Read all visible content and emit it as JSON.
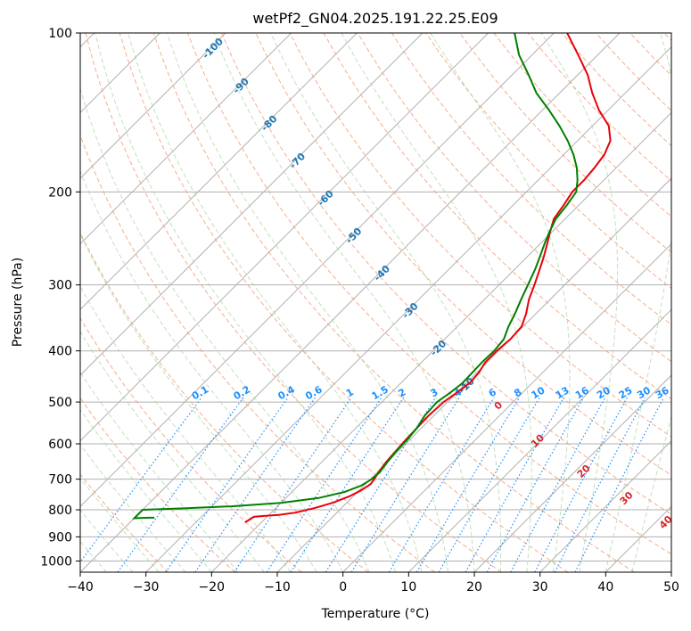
{
  "chart_data": {
    "type": "line",
    "title": "wetPf2_GN04.2025.191.22.25.E09",
    "xlabel": "Temperature (°C)",
    "ylabel": "Pressure (hPa)",
    "xlim": [
      -40,
      50
    ],
    "ylim": [
      1050,
      100
    ],
    "y_scale": "log",
    "x_ticks": [
      -40,
      -30,
      -20,
      -10,
      0,
      10,
      20,
      30,
      40,
      50
    ],
    "y_ticks": [
      1000,
      900,
      800,
      700,
      600,
      500,
      400,
      300,
      200,
      100
    ],
    "grid": true,
    "series": [
      {
        "id": "temperature",
        "color": "#e8000b",
        "points": [
          [
            -22.5,
            845
          ],
          [
            -22.0,
            825
          ],
          [
            -20.8,
            822
          ],
          [
            -18.5,
            818
          ],
          [
            -16.3,
            810
          ],
          [
            -14.0,
            793
          ],
          [
            -12.1,
            775
          ],
          [
            -10.6,
            755
          ],
          [
            -9.7,
            735
          ],
          [
            -9.2,
            715
          ],
          [
            -9.4,
            700
          ],
          [
            -9.8,
            680
          ],
          [
            -10.2,
            650
          ],
          [
            -10.4,
            620
          ],
          [
            -10.6,
            590
          ],
          [
            -10.7,
            560
          ],
          [
            -10.8,
            530
          ],
          [
            -10.6,
            500
          ],
          [
            -10.0,
            480
          ],
          [
            -9.5,
            460
          ],
          [
            -9.7,
            440
          ],
          [
            -10.3,
            420
          ],
          [
            -10.3,
            400
          ],
          [
            -10.0,
            380
          ],
          [
            -10.2,
            360
          ],
          [
            -11.5,
            340
          ],
          [
            -13.2,
            320
          ],
          [
            -14.6,
            300
          ],
          [
            -16.2,
            280
          ],
          [
            -17.5,
            265
          ],
          [
            -19.0,
            250
          ],
          [
            -20.3,
            238
          ],
          [
            -21.7,
            225
          ],
          [
            -22.3,
            212
          ],
          [
            -23.0,
            200
          ],
          [
            -23.0,
            190
          ],
          [
            -23.3,
            180
          ],
          [
            -23.8,
            170
          ],
          [
            -25.0,
            160
          ],
          [
            -27.5,
            150
          ],
          [
            -31.4,
            140
          ],
          [
            -35.0,
            130
          ],
          [
            -38.5,
            120
          ],
          [
            -43.0,
            110
          ],
          [
            -48.0,
            100
          ]
        ]
      },
      {
        "id": "dewpoint",
        "color": "#008000",
        "points": [
          [
            -37.0,
            828
          ],
          [
            -38.0,
            828
          ],
          [
            -40.0,
            830
          ],
          [
            -40.0,
            800
          ],
          [
            -34.0,
            795
          ],
          [
            -27.0,
            788
          ],
          [
            -20.0,
            776
          ],
          [
            -15.0,
            760
          ],
          [
            -12.0,
            740
          ],
          [
            -10.4,
            720
          ],
          [
            -9.8,
            700
          ],
          [
            -9.6,
            680
          ],
          [
            -10.0,
            650
          ],
          [
            -10.3,
            620
          ],
          [
            -10.4,
            590
          ],
          [
            -10.7,
            560
          ],
          [
            -11.4,
            530
          ],
          [
            -11.6,
            500
          ],
          [
            -11.0,
            480
          ],
          [
            -10.6,
            460
          ],
          [
            -10.7,
            440
          ],
          [
            -10.8,
            420
          ],
          [
            -10.7,
            400
          ],
          [
            -11.0,
            380
          ],
          [
            -12.2,
            360
          ],
          [
            -13.2,
            340
          ],
          [
            -14.4,
            320
          ],
          [
            -15.6,
            300
          ],
          [
            -16.9,
            280
          ],
          [
            -18.1,
            265
          ],
          [
            -19.4,
            250
          ],
          [
            -20.4,
            238
          ],
          [
            -21.4,
            225
          ],
          [
            -21.8,
            212
          ],
          [
            -22.4,
            200
          ],
          [
            -24.0,
            190
          ],
          [
            -26.0,
            180
          ],
          [
            -28.5,
            170
          ],
          [
            -31.5,
            160
          ],
          [
            -35.0,
            150
          ],
          [
            -39.0,
            140
          ],
          [
            -43.5,
            130
          ],
          [
            -47.5,
            120
          ],
          [
            -52.0,
            110
          ],
          [
            -56.0,
            100
          ]
        ]
      }
    ],
    "isotherm_labels": [
      "-100",
      "-90",
      "-80",
      "-70",
      "-60",
      "-50",
      "-40",
      "-30",
      "-20",
      "-10"
    ],
    "mixing_ratio_labels": [
      "0.1",
      "0.2",
      "0.4",
      "0.6",
      "1",
      "1.5",
      "2",
      "3",
      "4",
      "6",
      "8",
      "10",
      "13",
      "16",
      "20",
      "25",
      "30",
      "36"
    ],
    "dry_adiabat_labels": [
      "0",
      "10",
      "20",
      "30",
      "40"
    ]
  }
}
